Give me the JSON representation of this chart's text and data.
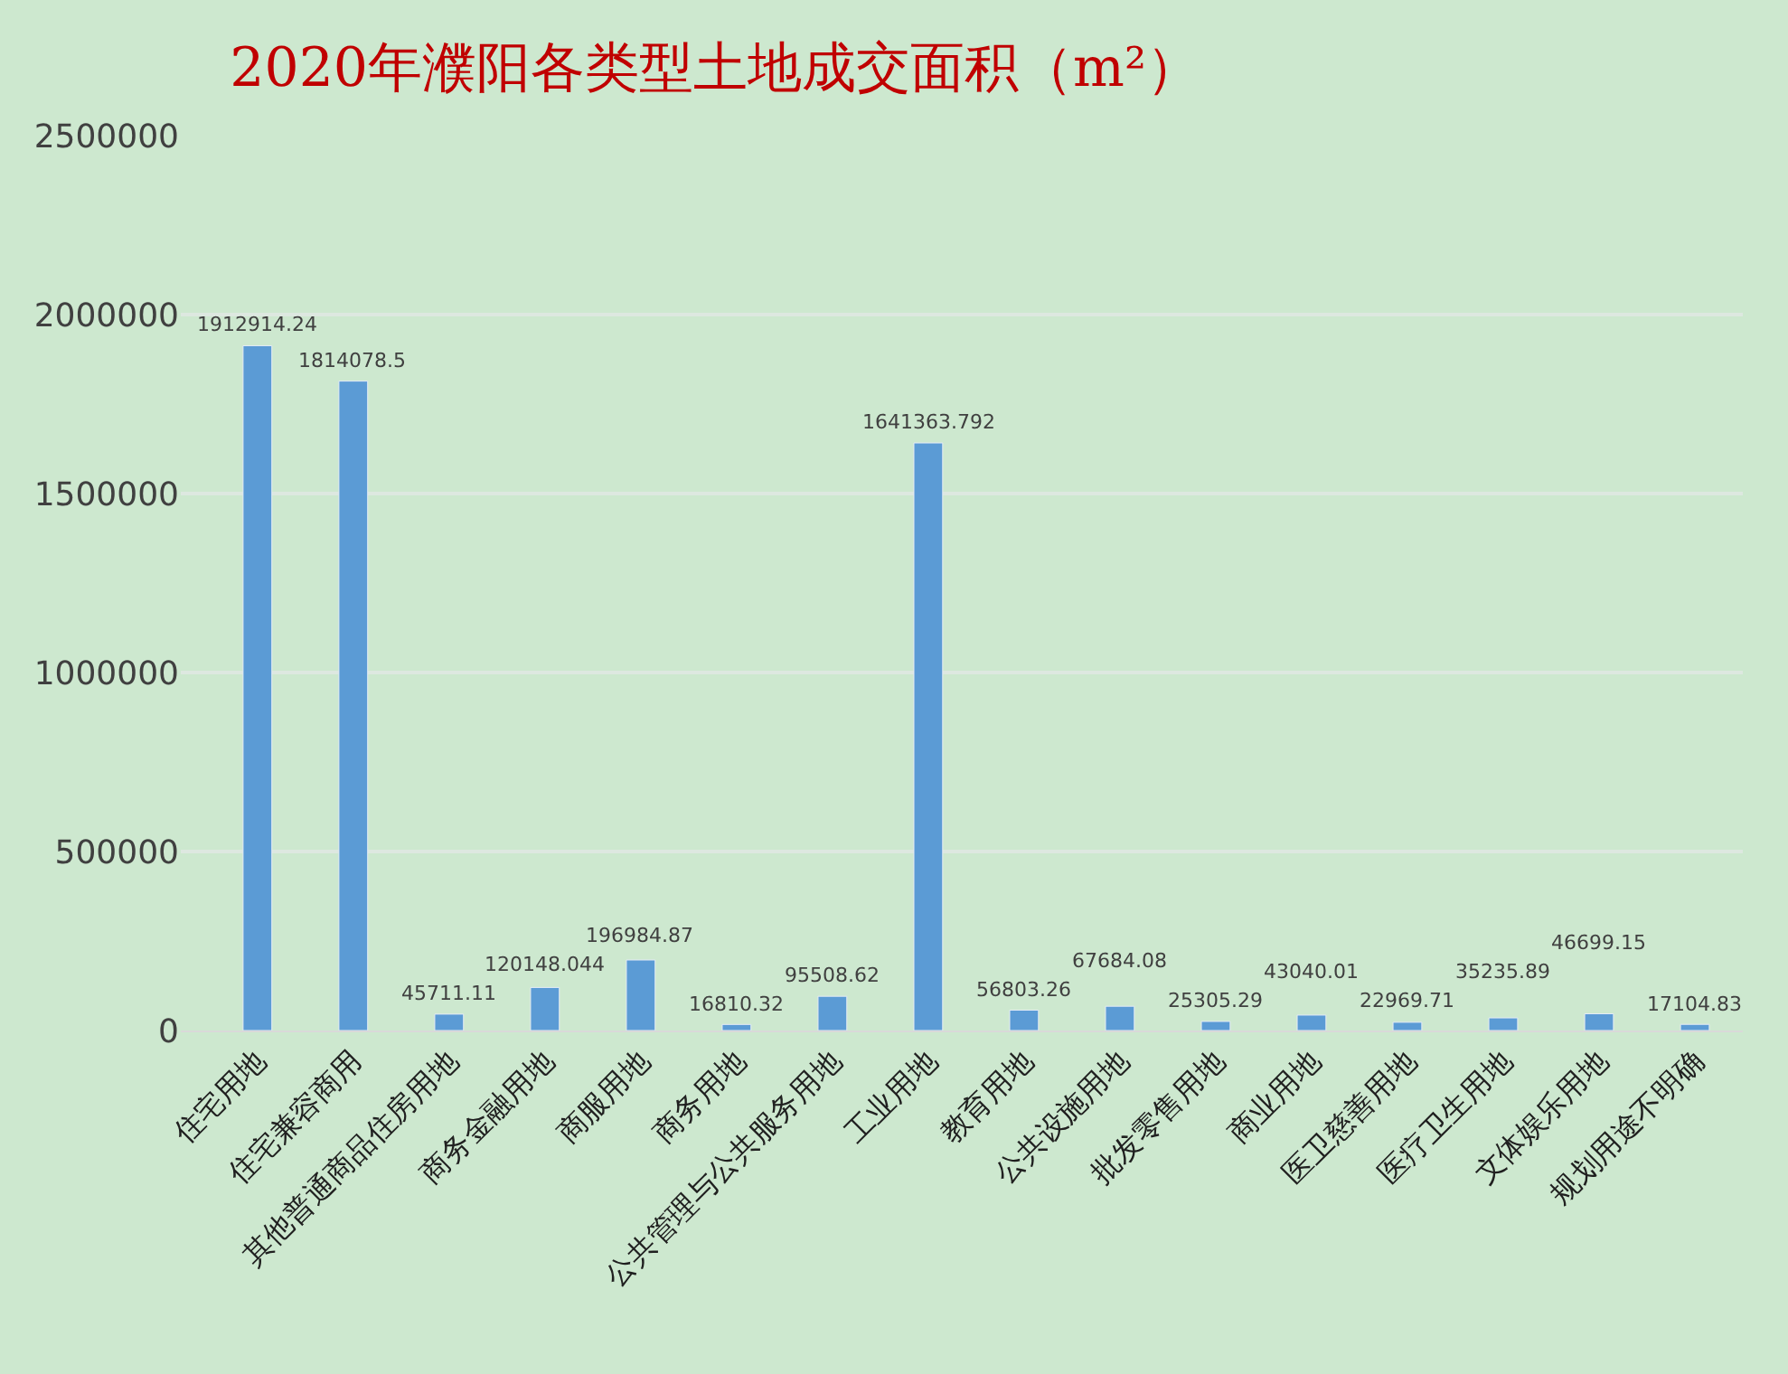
{
  "chart_data": {
    "type": "bar",
    "title": "2020年濮阳各类型土地成交面积（m²）",
    "categories": [
      "住宅用地",
      "住宅兼容商用",
      "其他普通商品住房用地",
      "商务金融用地",
      "商服用地",
      "商务用地",
      "公共管理与公共服务用地",
      "工业用地",
      "教育用地",
      "公共设施用地",
      "批发零售用地",
      "商业用地",
      "医卫慈善用地",
      "医疗卫生用地",
      "文体娱乐用地",
      "规划用途不明确"
    ],
    "values": [
      1912914.24,
      1814078.5,
      45711.11,
      120148.044,
      196984.87,
      16810.32,
      95508.62,
      1641363.792,
      56803.26,
      67684.08,
      25305.29,
      43040.01,
      22969.71,
      35235.89,
      46699.15,
      17104.83
    ],
    "color": "#5b9bd5",
    "ylim": [
      0,
      2500000
    ],
    "yticks": [
      0,
      500000,
      1000000,
      1500000,
      2000000,
      2500000
    ],
    "grid": "y",
    "data_labels": true
  }
}
